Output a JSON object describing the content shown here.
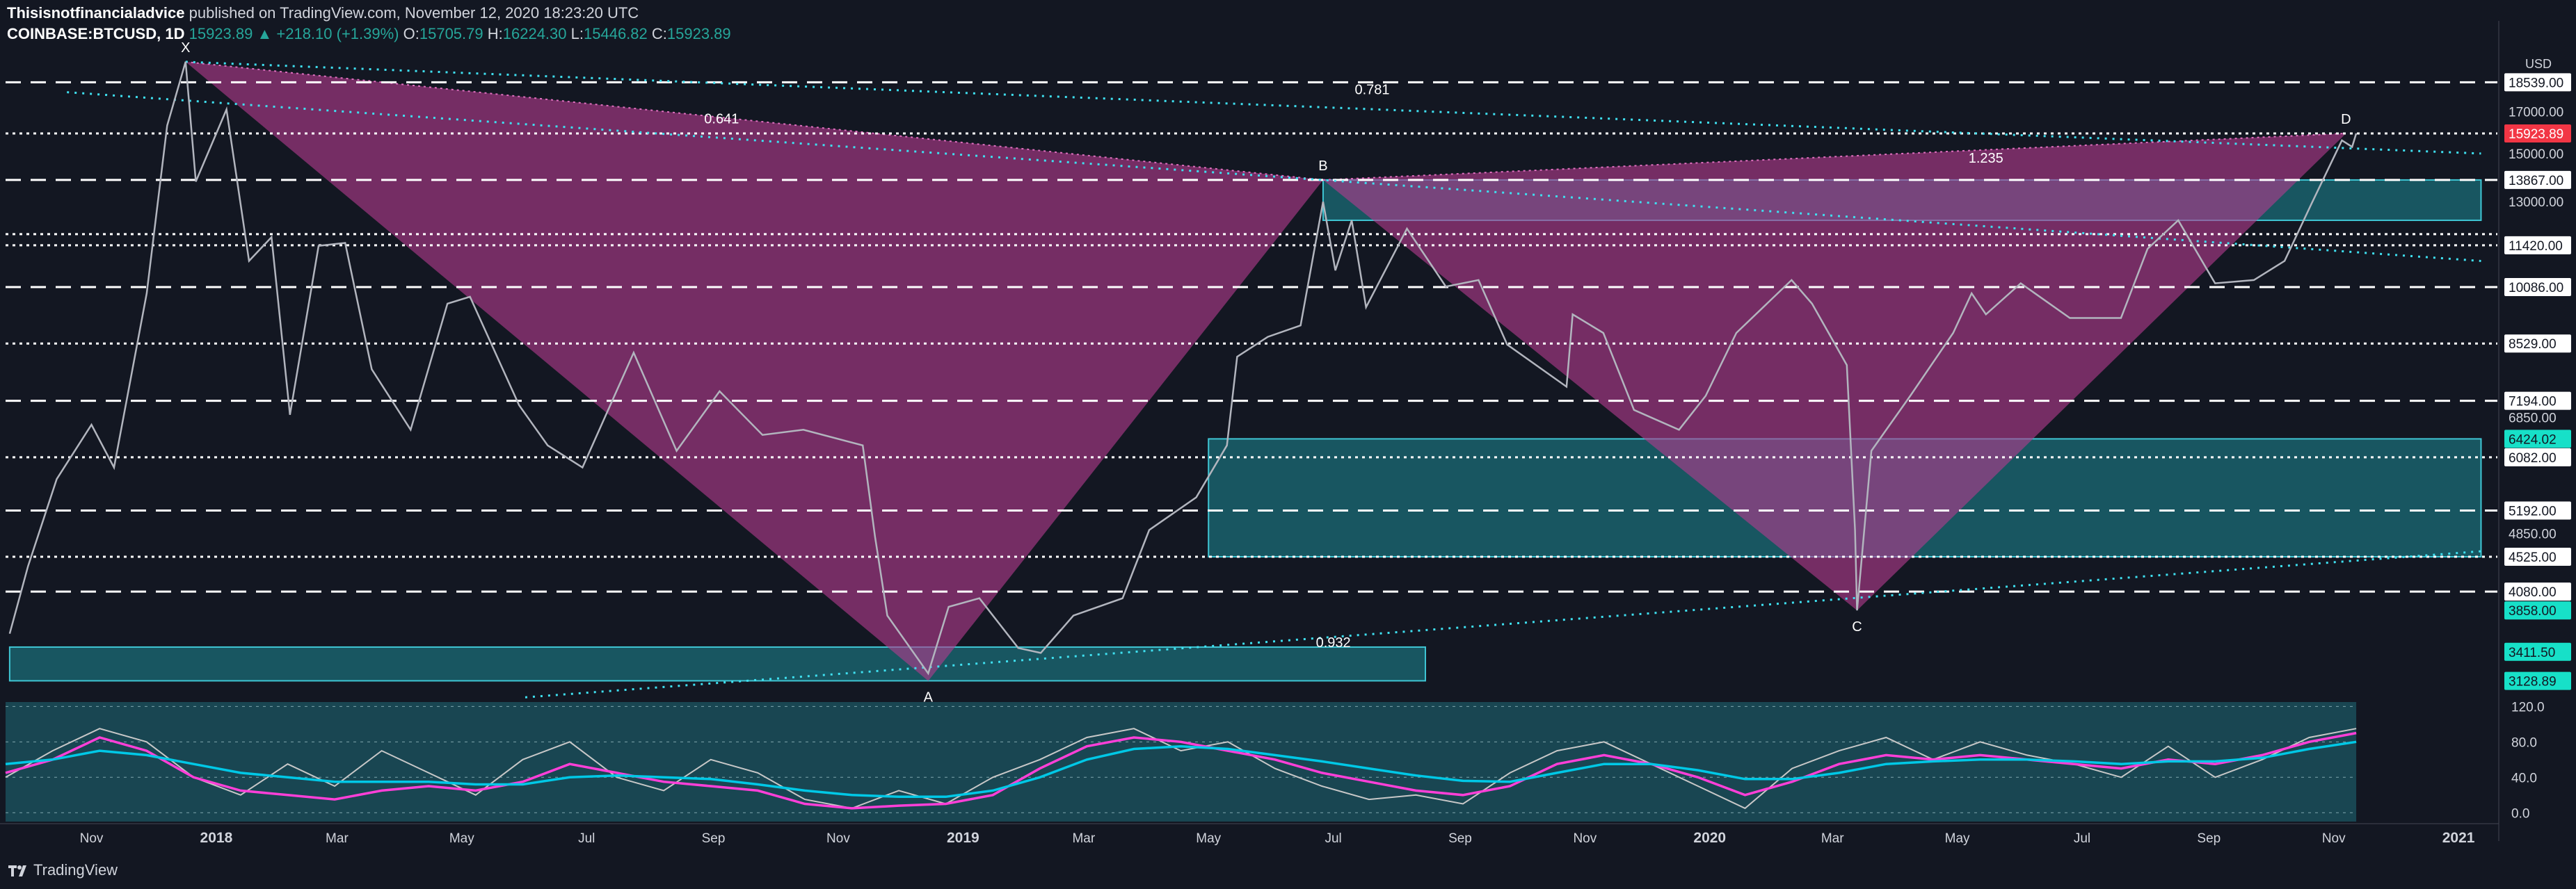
{
  "header": {
    "author": "Thisisnotfinancialadvice",
    "published": "published on TradingView.com, November 12, 2020 18:23:20 UTC",
    "symbol": "COINBASE:BTCUSD, 1D",
    "last": "15923.89",
    "change": "▲ +218.10 (+1.39%)",
    "open_label": "O:",
    "open": "15705.79",
    "high_label": "H:",
    "high": "16224.30",
    "low_label": "L:",
    "low": "15446.82",
    "close_label": "C:",
    "close": "15923.89"
  },
  "footer": {
    "brand": "TradingView",
    "logo_icon": "tradingview-logo-icon"
  },
  "chart_data": {
    "type": "line",
    "title": "",
    "currency_label": "USD",
    "y_scale": "log",
    "ylim": [
      3000,
      21000
    ],
    "x_start": "2017-09-20",
    "x_end": "2021-01-20",
    "x_tick_labels": [
      {
        "t": "2017-11-01",
        "label": "Nov"
      },
      {
        "t": "2018-01-01",
        "label": "2018"
      },
      {
        "t": "2018-03-01",
        "label": "Mar"
      },
      {
        "t": "2018-05-01",
        "label": "May"
      },
      {
        "t": "2018-07-01",
        "label": "Jul"
      },
      {
        "t": "2018-09-01",
        "label": "Sep"
      },
      {
        "t": "2018-11-01",
        "label": "Nov"
      },
      {
        "t": "2019-01-01",
        "label": "2019"
      },
      {
        "t": "2019-03-01",
        "label": "Mar"
      },
      {
        "t": "2019-05-01",
        "label": "May"
      },
      {
        "t": "2019-07-01",
        "label": "Jul"
      },
      {
        "t": "2019-09-01",
        "label": "Sep"
      },
      {
        "t": "2019-11-01",
        "label": "Nov"
      },
      {
        "t": "2020-01-01",
        "label": "2020"
      },
      {
        "t": "2020-03-01",
        "label": "Mar"
      },
      {
        "t": "2020-05-01",
        "label": "May"
      },
      {
        "t": "2020-07-01",
        "label": "Jul"
      },
      {
        "t": "2020-09-01",
        "label": "Sep"
      },
      {
        "t": "2020-11-01",
        "label": "Nov"
      },
      {
        "t": "2021-01-01",
        "label": "2021"
      }
    ],
    "price_series": {
      "name": "BTCUSD",
      "points": [
        [
          "2017-09-22",
          3600
        ],
        [
          "2017-10-01",
          4400
        ],
        [
          "2017-10-15",
          5700
        ],
        [
          "2017-11-01",
          6700
        ],
        [
          "2017-11-12",
          5900
        ],
        [
          "2017-11-28",
          9900
        ],
        [
          "2017-12-08",
          16300
        ],
        [
          "2017-12-17",
          19700
        ],
        [
          "2017-12-22",
          13800
        ],
        [
          "2018-01-06",
          17100
        ],
        [
          "2018-01-17",
          10900
        ],
        [
          "2018-01-28",
          11700
        ],
        [
          "2018-02-06",
          6900
        ],
        [
          "2018-02-20",
          11400
        ],
        [
          "2018-03-05",
          11500
        ],
        [
          "2018-03-18",
          7900
        ],
        [
          "2018-04-06",
          6600
        ],
        [
          "2018-04-24",
          9600
        ],
        [
          "2018-05-05",
          9800
        ],
        [
          "2018-05-29",
          7100
        ],
        [
          "2018-06-12",
          6300
        ],
        [
          "2018-06-29",
          5900
        ],
        [
          "2018-07-24",
          8300
        ],
        [
          "2018-08-14",
          6200
        ],
        [
          "2018-09-04",
          7400
        ],
        [
          "2018-09-25",
          6500
        ],
        [
          "2018-10-15",
          6600
        ],
        [
          "2018-11-13",
          6300
        ],
        [
          "2018-11-19",
          4800
        ],
        [
          "2018-11-25",
          3800
        ],
        [
          "2018-12-15",
          3200
        ],
        [
          "2018-12-25",
          3900
        ],
        [
          "2019-01-09",
          4000
        ],
        [
          "2019-01-28",
          3450
        ],
        [
          "2019-02-08",
          3400
        ],
        [
          "2019-02-24",
          3800
        ],
        [
          "2019-03-20",
          4000
        ],
        [
          "2019-04-02",
          4900
        ],
        [
          "2019-04-25",
          5400
        ],
        [
          "2019-05-10",
          6300
        ],
        [
          "2019-05-15",
          8200
        ],
        [
          "2019-05-30",
          8700
        ],
        [
          "2019-06-15",
          9000
        ],
        [
          "2019-06-26",
          13000
        ],
        [
          "2019-07-02",
          10600
        ],
        [
          "2019-07-10",
          12300
        ],
        [
          "2019-07-17",
          9500
        ],
        [
          "2019-08-06",
          12000
        ],
        [
          "2019-08-25",
          10100
        ],
        [
          "2019-09-10",
          10300
        ],
        [
          "2019-09-24",
          8500
        ],
        [
          "2019-10-23",
          7500
        ],
        [
          "2019-10-26",
          9300
        ],
        [
          "2019-11-10",
          8800
        ],
        [
          "2019-11-25",
          7000
        ],
        [
          "2019-12-17",
          6600
        ],
        [
          "2019-12-30",
          7300
        ],
        [
          "2020-01-14",
          8800
        ],
        [
          "2020-02-10",
          10300
        ],
        [
          "2020-02-20",
          9600
        ],
        [
          "2020-03-08",
          8000
        ],
        [
          "2020-03-12",
          4900
        ],
        [
          "2020-03-13",
          3858
        ],
        [
          "2020-03-20",
          6200
        ],
        [
          "2020-04-08",
          7300
        ],
        [
          "2020-04-29",
          8800
        ],
        [
          "2020-05-08",
          9900
        ],
        [
          "2020-05-15",
          9300
        ],
        [
          "2020-06-01",
          10200
        ],
        [
          "2020-06-25",
          9200
        ],
        [
          "2020-07-20",
          9200
        ],
        [
          "2020-08-02",
          11300
        ],
        [
          "2020-08-17",
          12300
        ],
        [
          "2020-09-04",
          10200
        ],
        [
          "2020-09-23",
          10300
        ],
        [
          "2020-10-08",
          10900
        ],
        [
          "2020-10-21",
          12900
        ],
        [
          "2020-11-05",
          15600
        ],
        [
          "2020-11-10",
          15300
        ],
        [
          "2020-11-12",
          15923.89
        ]
      ]
    },
    "pattern": {
      "points": [
        {
          "label": "X",
          "t": "2017-12-17",
          "price": 19700
        },
        {
          "label": "A",
          "t": "2018-12-15",
          "price": 3128.89
        },
        {
          "label": "B",
          "t": "2019-06-26",
          "price": 13867
        },
        {
          "label": "C",
          "t": "2020-03-13",
          "price": 3858
        },
        {
          "label": "D",
          "t": "2020-11-07",
          "price": 15923.89
        }
      ],
      "ratios": [
        {
          "label": "0.641",
          "t": "2018-09-05",
          "price": 16400
        },
        {
          "label": "0.781",
          "t": "2019-07-20",
          "price": 17900
        },
        {
          "label": "1.235",
          "t": "2020-05-15",
          "price": 14600
        },
        {
          "label": "0.932",
          "t": "2019-07-01",
          "price": 3460
        }
      ],
      "color": "#b23c8c"
    },
    "zones": [
      {
        "t0": "2017-09-22",
        "t1": "2019-08-15",
        "low": 3130,
        "high": 3460
      },
      {
        "t0": "2019-05-01",
        "t1": "2021-01-12",
        "low": 4525,
        "high": 6424
      },
      {
        "t0": "2019-06-26",
        "t1": "2021-01-12",
        "low": 12300,
        "high": 13867
      }
    ],
    "levels": [
      {
        "price": 18539.0,
        "style": "dash"
      },
      {
        "price": 15923.89,
        "style": "dot"
      },
      {
        "price": 13867.0,
        "style": "dash"
      },
      {
        "price": 11420.0,
        "style": "dot"
      },
      {
        "price": 11805.0,
        "style": "dot"
      },
      {
        "price": 10086.0,
        "style": "dash"
      },
      {
        "price": 8529.0,
        "style": "dot"
      },
      {
        "price": 7194.0,
        "style": "dash"
      },
      {
        "price": 6082.0,
        "style": "dot"
      },
      {
        "price": 5192.0,
        "style": "dash"
      },
      {
        "price": 4525.0,
        "style": "dot"
      },
      {
        "price": 4080.0,
        "style": "dash"
      }
    ],
    "trendlines": [
      {
        "t0": "2017-10-20",
        "p0": 18000,
        "t1": "2021-01-12",
        "p1": 10900
      },
      {
        "t0": "2017-12-17",
        "p0": 19700,
        "t1": "2021-01-12",
        "p1": 15000
      },
      {
        "t0": "2018-06-01",
        "p0": 2980,
        "t1": "2021-01-12",
        "p1": 4600
      }
    ],
    "price_axis": [
      {
        "label": "18539.00",
        "price": 18539,
        "badge": "white"
      },
      {
        "label": "17000.00",
        "price": 17000,
        "badge": "none"
      },
      {
        "label": "15923.89",
        "price": 15923.89,
        "badge": "red"
      },
      {
        "label": "15000.00",
        "price": 15000,
        "badge": "none"
      },
      {
        "label": "13867.00",
        "price": 13867,
        "badge": "white"
      },
      {
        "label": "13000.00",
        "price": 13000,
        "badge": "none"
      },
      {
        "label": "11420.00",
        "price": 11420,
        "badge": "white"
      },
      {
        "label": "10086.00",
        "price": 10086,
        "badge": "white"
      },
      {
        "label": "8529.00",
        "price": 8529,
        "badge": "white"
      },
      {
        "label": "7194.00",
        "price": 7194,
        "badge": "white"
      },
      {
        "label": "6850.00",
        "price": 6850,
        "badge": "none"
      },
      {
        "label": "6424.02",
        "price": 6424.02,
        "badge": "teal"
      },
      {
        "label": "6082.00",
        "price": 6082,
        "badge": "white"
      },
      {
        "label": "5192.00",
        "price": 5192,
        "badge": "white"
      },
      {
        "label": "4850.00",
        "price": 4850,
        "badge": "none"
      },
      {
        "label": "4525.00",
        "price": 4525,
        "badge": "white"
      },
      {
        "label": "4080.00",
        "price": 4080,
        "badge": "white"
      },
      {
        "label": "3858.00",
        "price": 3858,
        "badge": "teal"
      },
      {
        "label": "3411.50",
        "price": 3411.5,
        "badge": "teal"
      },
      {
        "label": "3128.89",
        "price": 3128.89,
        "badge": "teal"
      }
    ],
    "oscillator": {
      "ylim": [
        -10,
        125
      ],
      "ticks": [
        {
          "label": "120.0",
          "value": 120
        },
        {
          "label": "80.0",
          "value": 80
        },
        {
          "label": "40.0",
          "value": 40
        },
        {
          "label": "0.0",
          "value": 0
        }
      ],
      "series": [
        {
          "color": "#c8c8c8",
          "values": [
            40,
            70,
            95,
            80,
            40,
            20,
            55,
            30,
            70,
            45,
            20,
            60,
            80,
            40,
            25,
            60,
            45,
            15,
            5,
            25,
            10,
            40,
            60,
            85,
            95,
            70,
            80,
            50,
            30,
            15,
            20,
            10,
            45,
            70,
            80,
            55,
            30,
            5,
            50,
            70,
            85,
            60,
            80,
            65,
            55,
            40,
            75,
            40,
            60,
            85,
            95
          ]
        },
        {
          "color": "#ff3fd8",
          "values": [
            45,
            60,
            85,
            70,
            40,
            25,
            20,
            15,
            25,
            30,
            25,
            35,
            55,
            45,
            35,
            30,
            25,
            10,
            5,
            8,
            10,
            20,
            50,
            75,
            85,
            80,
            70,
            60,
            45,
            35,
            25,
            20,
            30,
            55,
            65,
            55,
            40,
            20,
            35,
            55,
            65,
            60,
            65,
            60,
            55,
            50,
            60,
            55,
            65,
            80,
            90
          ]
        },
        {
          "color": "#00c8e6",
          "values": [
            55,
            60,
            70,
            65,
            55,
            45,
            40,
            35,
            35,
            35,
            32,
            32,
            40,
            42,
            40,
            38,
            32,
            25,
            20,
            18,
            18,
            25,
            40,
            60,
            72,
            75,
            72,
            65,
            58,
            50,
            42,
            36,
            35,
            45,
            55,
            55,
            48,
            38,
            38,
            45,
            55,
            58,
            60,
            60,
            58,
            55,
            58,
            58,
            62,
            72,
            80
          ]
        }
      ]
    }
  }
}
